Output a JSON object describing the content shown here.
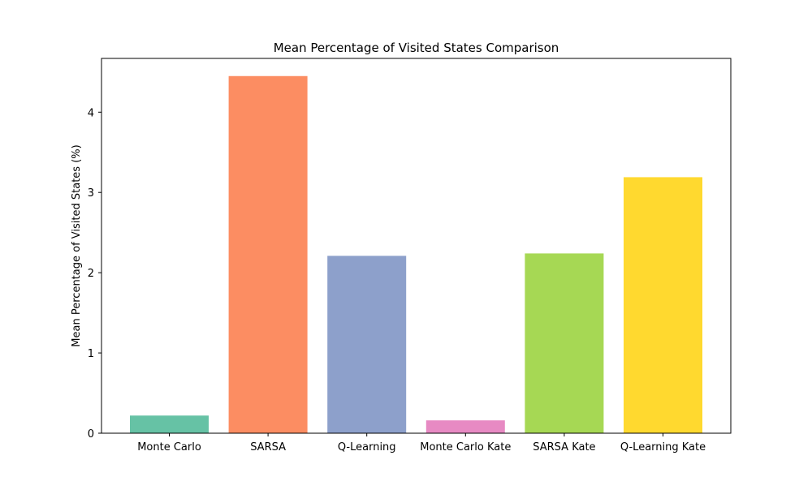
{
  "chart_data": {
    "type": "bar",
    "title": "Mean Percentage of Visited States Comparison",
    "xlabel": "",
    "ylabel": "Mean Percentage of Visited States (%)",
    "ylim": [
      0,
      4.67
    ],
    "yticks": [
      0,
      1,
      2,
      3,
      4
    ],
    "ytick_labels": [
      "0",
      "1",
      "2",
      "3",
      "4"
    ],
    "categories": [
      "Monte Carlo",
      "SARSA",
      "Q-Learning",
      "Monte Carlo Kate",
      "SARSA Kate",
      "Q-Learning Kate"
    ],
    "values": [
      0.22,
      4.45,
      2.21,
      0.16,
      2.24,
      3.19
    ],
    "colors": [
      "#66c2a5",
      "#fc8d62",
      "#8da0cb",
      "#e78ac3",
      "#a6d854",
      "#ffd92f"
    ],
    "grid": false,
    "legend": "none"
  }
}
